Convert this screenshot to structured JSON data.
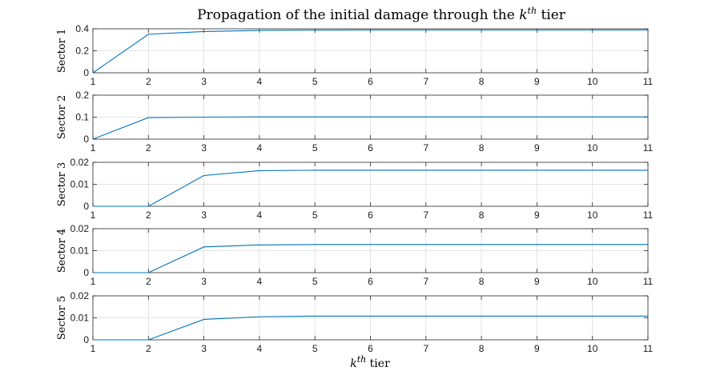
{
  "chart_data": {
    "type": "line",
    "title": {
      "prefix": "Propagation of the initial damage through the ",
      "var": "k",
      "sup": "th",
      "suffix": " tier"
    },
    "xlabel": {
      "var": "k",
      "sup": "th",
      "suffix": " tier"
    },
    "x": [
      1,
      2,
      3,
      4,
      5,
      6,
      7,
      8,
      9,
      10,
      11
    ],
    "xlim": [
      1,
      11
    ],
    "xticks": [
      "1",
      "2",
      "3",
      "4",
      "5",
      "6",
      "7",
      "8",
      "9",
      "10",
      "11"
    ],
    "grid": true,
    "line_color": "#0072BD",
    "panels": [
      {
        "ylabel": "Sector 1",
        "ylim": [
          0,
          0.4
        ],
        "yticks": [
          0,
          0.2,
          0.4
        ],
        "ytick_labels": [
          "0",
          "0.2",
          "0.4"
        ],
        "values": [
          0,
          0.35,
          0.375,
          0.385,
          0.388,
          0.389,
          0.389,
          0.389,
          0.389,
          0.389,
          0.389
        ]
      },
      {
        "ylabel": "Sector 2",
        "ylim": [
          0,
          0.2
        ],
        "yticks": [
          0,
          0.1,
          0.2
        ],
        "ytick_labels": [
          "0",
          "0.1",
          "0.2"
        ],
        "values": [
          0,
          0.098,
          0.1,
          0.101,
          0.101,
          0.101,
          0.101,
          0.101,
          0.101,
          0.101,
          0.101
        ]
      },
      {
        "ylabel": "Sector 3",
        "ylim": [
          0,
          0.02
        ],
        "yticks": [
          0,
          0.01,
          0.02
        ],
        "ytick_labels": [
          "0",
          "0.01",
          "0.02"
        ],
        "values": [
          0,
          0,
          0.014,
          0.0162,
          0.0164,
          0.0164,
          0.0164,
          0.0164,
          0.0164,
          0.0164,
          0.0164
        ]
      },
      {
        "ylabel": "Sector 4",
        "ylim": [
          0,
          0.02
        ],
        "yticks": [
          0,
          0.01,
          0.02
        ],
        "ytick_labels": [
          "0",
          "0.01",
          "0.02"
        ],
        "values": [
          0,
          0,
          0.0117,
          0.0126,
          0.0128,
          0.0128,
          0.0128,
          0.0128,
          0.0128,
          0.0128,
          0.0128
        ]
      },
      {
        "ylabel": "Sector 5",
        "ylim": [
          0,
          0.02
        ],
        "yticks": [
          0,
          0.01,
          0.02
        ],
        "ytick_labels": [
          "0",
          "0.01",
          "0.02"
        ],
        "values": [
          0,
          0,
          0.0093,
          0.0105,
          0.0108,
          0.0108,
          0.0108,
          0.0108,
          0.0108,
          0.0108,
          0.0108
        ]
      }
    ]
  }
}
